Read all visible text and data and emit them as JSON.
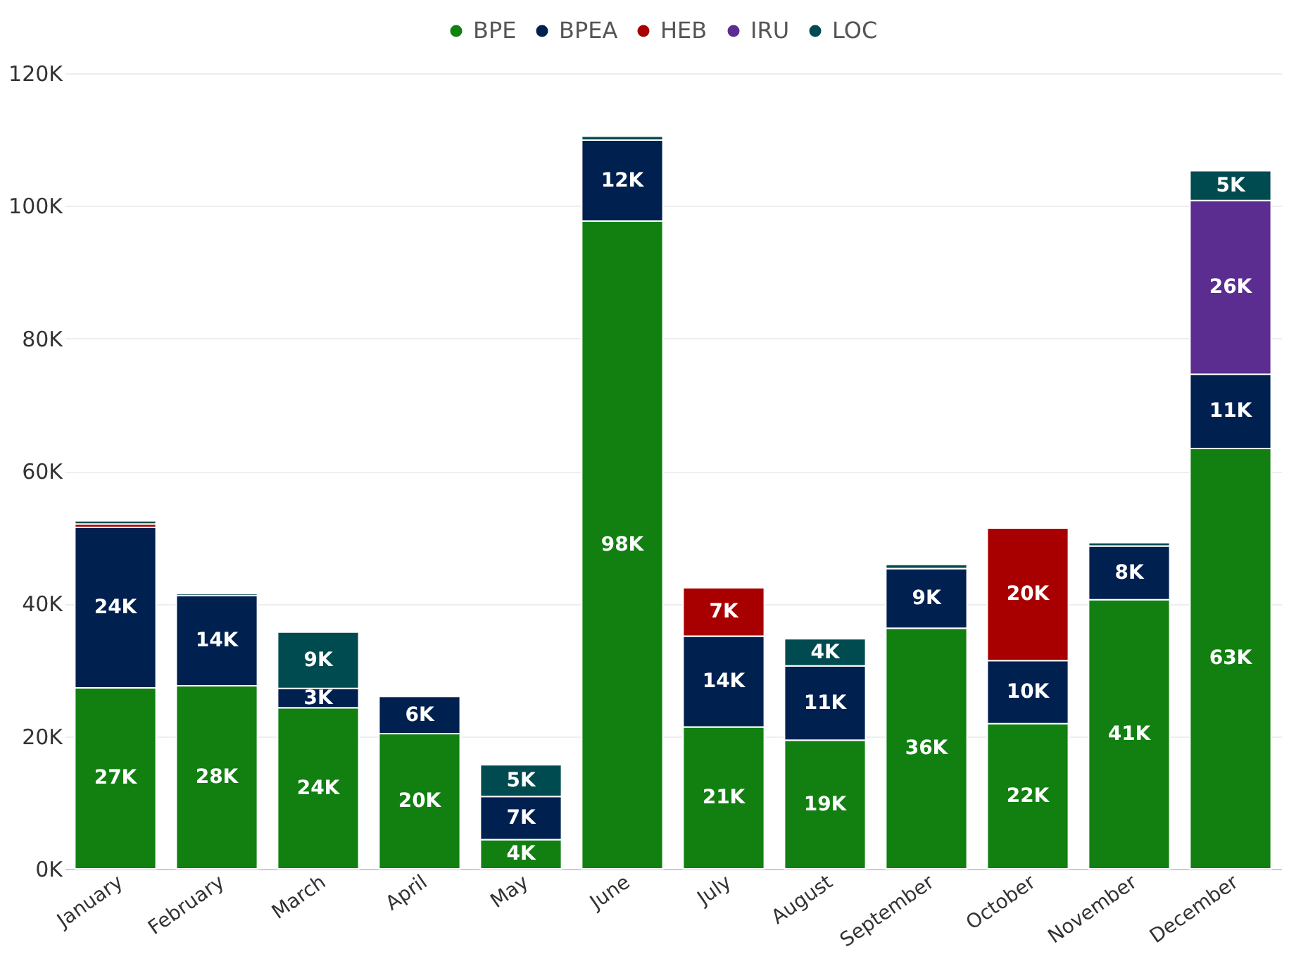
{
  "chart_data": {
    "type": "bar",
    "stacked": true,
    "legend": "top",
    "grid": "y",
    "categories": [
      "January",
      "February",
      "March",
      "April",
      "May",
      "June",
      "July",
      "August",
      "September",
      "October",
      "November",
      "December"
    ],
    "ylim": [
      0,
      120000
    ],
    "yticks": [
      {
        "value": 0,
        "label": "0K"
      },
      {
        "value": 20000,
        "label": "20K"
      },
      {
        "value": 40000,
        "label": "40K"
      },
      {
        "value": 60000,
        "label": "60K"
      },
      {
        "value": 80000,
        "label": "80K"
      },
      {
        "value": 100000,
        "label": "100K"
      },
      {
        "value": 120000,
        "label": "120K"
      }
    ],
    "series": [
      {
        "name": "BPE",
        "color": "#118011",
        "values": [
          27300,
          27600,
          24300,
          20400,
          4400,
          97700,
          21400,
          19400,
          36300,
          21900,
          40600,
          63400
        ],
        "value_labels": [
          "27K",
          "28K",
          "24K",
          "20K",
          "4K",
          "98K",
          "21K",
          "19K",
          "36K",
          "22K",
          "41K",
          "63K"
        ]
      },
      {
        "name": "BPEA",
        "color": "#002050",
        "values": [
          24200,
          13600,
          2900,
          5600,
          6500,
          12200,
          13700,
          11200,
          9000,
          9500,
          8100,
          11200
        ],
        "value_labels": [
          "24K",
          "14K",
          "3K",
          "6K",
          "7K",
          "12K",
          "14K",
          "11K",
          "9K",
          "10K",
          "8K",
          "11K"
        ]
      },
      {
        "name": "HEB",
        "color": "#a80000",
        "values": [
          500,
          null,
          null,
          null,
          null,
          null,
          7300,
          null,
          null,
          20000,
          null,
          null
        ],
        "value_labels": [
          null,
          null,
          null,
          null,
          null,
          null,
          "7K",
          null,
          null,
          "20K",
          null,
          null
        ]
      },
      {
        "name": "IRU",
        "color": "#5c2d91",
        "values": [
          null,
          null,
          null,
          null,
          null,
          null,
          null,
          null,
          null,
          null,
          null,
          26200
        ],
        "value_labels": [
          null,
          null,
          null,
          null,
          null,
          null,
          null,
          null,
          null,
          null,
          null,
          "26K"
        ]
      },
      {
        "name": "LOC",
        "color": "#004b50",
        "values": [
          500,
          300,
          8500,
          null,
          4800,
          600,
          null,
          4100,
          600,
          null,
          500,
          4500
        ],
        "value_labels": [
          null,
          null,
          "9K",
          null,
          "5K",
          null,
          null,
          "4K",
          null,
          null,
          null,
          "5K"
        ]
      }
    ]
  }
}
